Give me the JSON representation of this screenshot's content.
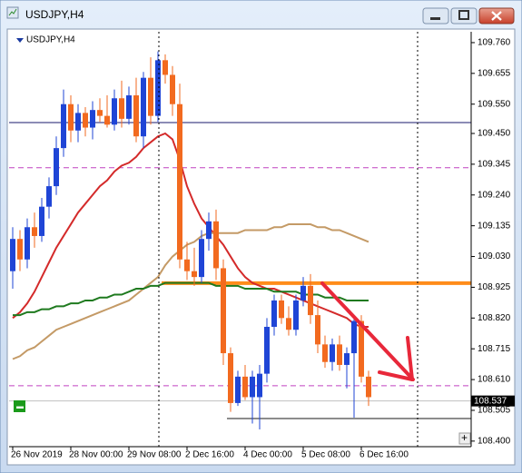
{
  "window": {
    "title": "USDJPY,H4"
  },
  "chart_data": {
    "type": "candlestick",
    "title": "USDJPY,H4",
    "categories": [
      "26 Nov 2019",
      null,
      null,
      null,
      null,
      null,
      null,
      null,
      "28 Nov 00:00",
      null,
      null,
      null,
      null,
      null,
      null,
      null,
      "29 Nov 08:00",
      null,
      null,
      null,
      null,
      null,
      null,
      null,
      "2 Dec 16:00",
      null,
      null,
      null,
      null,
      null,
      null,
      null,
      "4 Dec 00:00",
      null,
      null,
      null,
      null,
      null,
      null,
      null,
      "5 Dec 08:00",
      null,
      null,
      null,
      null,
      null,
      null,
      null,
      "6 Dec 16:00",
      null
    ],
    "open": [
      108.98,
      109.09,
      109.02,
      109.13,
      109.1,
      109.2,
      109.27,
      109.4,
      109.55,
      109.46,
      109.52,
      109.47,
      109.53,
      109.51,
      109.48,
      109.57,
      109.5,
      109.58,
      109.44,
      109.64,
      109.51,
      109.7,
      109.65,
      109.55,
      109.02,
      108.98,
      108.96,
      109.09,
      109.15,
      108.99,
      108.7,
      108.53,
      108.62,
      108.55,
      108.55,
      108.63,
      108.79,
      108.88,
      108.82,
      108.78,
      108.88,
      108.93,
      108.83,
      108.73,
      108.67,
      108.73,
      108.66,
      108.7,
      108.81,
      108.62
    ],
    "high": [
      109.13,
      109.12,
      109.16,
      109.18,
      109.23,
      109.3,
      109.44,
      109.6,
      109.58,
      109.55,
      109.54,
      109.56,
      109.57,
      109.58,
      109.6,
      109.63,
      109.61,
      109.64,
      109.66,
      109.71,
      109.73,
      109.72,
      109.68,
      109.62,
      109.08,
      109.06,
      109.12,
      109.18,
      109.19,
      109.02,
      108.72,
      108.64,
      108.66,
      108.64,
      108.66,
      108.82,
      108.9,
      108.9,
      108.86,
      108.9,
      108.96,
      108.97,
      108.88,
      108.76,
      108.75,
      108.76,
      108.72,
      108.82,
      108.83,
      108.64
    ],
    "low": [
      108.92,
      108.98,
      108.99,
      109.06,
      109.08,
      109.16,
      109.24,
      109.37,
      109.42,
      109.42,
      109.44,
      109.43,
      109.49,
      109.47,
      109.46,
      109.47,
      109.48,
      109.42,
      109.4,
      109.48,
      109.49,
      109.62,
      109.51,
      108.99,
      108.95,
      108.93,
      108.94,
      109.05,
      108.95,
      108.66,
      108.5,
      108.52,
      108.54,
      108.46,
      108.44,
      108.6,
      108.76,
      108.8,
      108.76,
      108.76,
      108.86,
      108.8,
      108.7,
      108.65,
      108.64,
      108.64,
      108.58,
      108.48,
      108.6,
      108.52
    ],
    "close": [
      109.09,
      109.02,
      109.13,
      109.1,
      109.2,
      109.27,
      109.4,
      109.55,
      109.46,
      109.52,
      109.47,
      109.53,
      109.51,
      109.48,
      109.57,
      109.5,
      109.58,
      109.44,
      109.64,
      109.51,
      109.7,
      109.65,
      109.55,
      109.02,
      108.98,
      108.96,
      109.09,
      109.15,
      108.99,
      108.7,
      108.53,
      108.62,
      108.55,
      108.62,
      108.63,
      108.79,
      108.88,
      108.82,
      108.78,
      108.88,
      108.93,
      108.83,
      108.73,
      108.67,
      108.73,
      108.66,
      108.7,
      108.81,
      108.62,
      108.55
    ],
    "up_color": "#1f45d6",
    "down_color": "#f26a1f",
    "overlays": [
      {
        "color": "#d42a2a",
        "values": [
          108.82,
          108.84,
          108.87,
          108.91,
          108.96,
          109.01,
          109.06,
          109.1,
          109.14,
          109.18,
          109.21,
          109.24,
          109.27,
          109.29,
          109.32,
          109.34,
          109.35,
          109.37,
          109.4,
          109.42,
          109.44,
          109.45,
          109.43,
          109.36,
          109.27,
          109.21,
          109.16,
          109.13,
          109.1,
          109.07,
          109.03,
          108.99,
          108.96,
          108.94,
          108.93,
          108.92,
          108.92,
          108.91,
          108.9,
          108.89,
          108.88,
          108.87,
          108.86,
          108.85,
          108.84,
          108.83,
          108.82,
          108.8,
          108.79,
          108.79
        ]
      },
      {
        "color": "#c49a66",
        "values": [
          108.68,
          108.69,
          108.71,
          108.72,
          108.74,
          108.76,
          108.78,
          108.79,
          108.8,
          108.81,
          108.82,
          108.83,
          108.84,
          108.85,
          108.86,
          108.87,
          108.88,
          108.9,
          108.92,
          108.94,
          108.96,
          109.0,
          109.03,
          109.05,
          109.07,
          109.08,
          109.1,
          109.11,
          109.11,
          109.11,
          109.11,
          109.11,
          109.12,
          109.12,
          109.12,
          109.12,
          109.13,
          109.13,
          109.14,
          109.14,
          109.14,
          109.14,
          109.13,
          109.13,
          109.12,
          109.12,
          109.11,
          109.1,
          109.09,
          109.08
        ]
      },
      {
        "color": "#1f7a1f",
        "values": [
          108.83,
          108.83,
          108.84,
          108.84,
          108.85,
          108.85,
          108.86,
          108.86,
          108.87,
          108.87,
          108.88,
          108.88,
          108.89,
          108.89,
          108.9,
          108.9,
          108.91,
          108.92,
          108.92,
          108.93,
          108.93,
          108.94,
          108.94,
          108.94,
          108.94,
          108.94,
          108.94,
          108.94,
          108.93,
          108.93,
          108.93,
          108.93,
          108.92,
          108.92,
          108.92,
          108.92,
          108.91,
          108.91,
          108.91,
          108.91,
          108.9,
          108.9,
          108.9,
          108.89,
          108.89,
          108.89,
          108.88,
          108.88,
          108.88,
          108.88
        ]
      }
    ],
    "levels": [
      {
        "value": 109.487,
        "color": "#1a1a6e",
        "style": "solid",
        "width": 1
      },
      {
        "value": 109.333,
        "color": "#c040c0",
        "style": "dashed",
        "width": 1
      },
      {
        "value": 108.939,
        "color": "#ff8c1a",
        "style": "solid",
        "width": 4,
        "from": 21
      },
      {
        "value": 108.589,
        "color": "#c040c0",
        "style": "dashed",
        "width": 1
      },
      {
        "value": 108.537,
        "color": "#c0c0c0",
        "style": "solid",
        "width": 1
      },
      {
        "value": 108.477,
        "color": "#1a1a1a",
        "style": "solid",
        "width": 1,
        "from": 30
      }
    ],
    "last_price": 108.537,
    "ylim": [
      108.381,
      109.797
    ],
    "yticks": [
      {
        "value": 109.76,
        "label": "109.760"
      },
      {
        "value": 109.655,
        "label": "109.655"
      },
      {
        "value": 109.55,
        "label": "109.550"
      },
      {
        "value": 109.45,
        "label": "109.450"
      },
      {
        "value": 109.345,
        "label": "109.345"
      },
      {
        "value": 109.24,
        "label": "109.240"
      },
      {
        "value": 109.135,
        "label": "109.135"
      },
      {
        "value": 109.03,
        "label": "109.030"
      },
      {
        "value": 108.925,
        "label": "108.925"
      },
      {
        "value": 108.82,
        "label": "108.820"
      },
      {
        "value": 108.715,
        "label": "108.715"
      },
      {
        "value": 108.61,
        "label": "108.610"
      },
      {
        "value": 108.505,
        "label": "108.505"
      },
      {
        "value": 108.4,
        "label": "108.400"
      }
    ]
  }
}
